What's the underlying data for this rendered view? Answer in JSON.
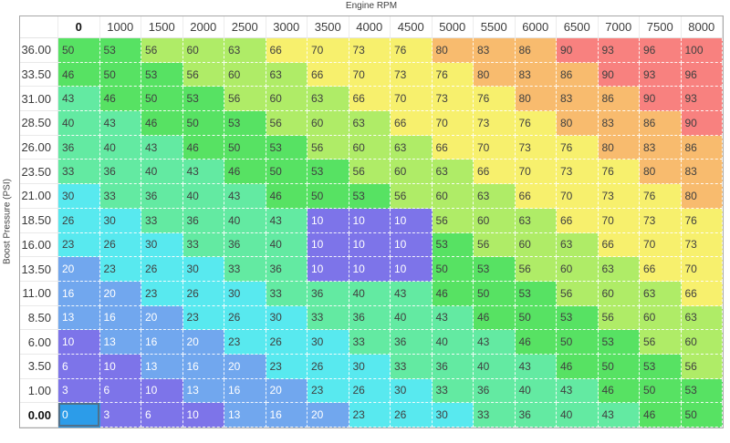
{
  "axes": {
    "x_label": "Engine RPM",
    "y_label": "Boost Pressure (PSI)"
  },
  "table": {
    "column_headers": [
      "0",
      "1000",
      "1500",
      "2000",
      "2500",
      "3000",
      "3500",
      "4000",
      "4500",
      "5000",
      "5500",
      "6000",
      "6500",
      "7000",
      "7500",
      "8000"
    ],
    "row_headers": [
      "36.00",
      "33.50",
      "31.00",
      "28.50",
      "26.00",
      "23.50",
      "21.00",
      "18.50",
      "16.00",
      "13.50",
      "11.00",
      "8.50",
      "6.00",
      "3.50",
      "1.00",
      "0.00"
    ],
    "values": [
      [
        50,
        53,
        56,
        60,
        63,
        66,
        70,
        73,
        76,
        80,
        83,
        86,
        90,
        93,
        96,
        100
      ],
      [
        46,
        50,
        53,
        56,
        60,
        63,
        66,
        70,
        73,
        76,
        80,
        83,
        86,
        90,
        93,
        96
      ],
      [
        43,
        46,
        50,
        53,
        56,
        60,
        63,
        66,
        70,
        73,
        76,
        80,
        83,
        86,
        90,
        93
      ],
      [
        40,
        43,
        46,
        50,
        53,
        56,
        60,
        63,
        66,
        70,
        73,
        76,
        80,
        83,
        86,
        90
      ],
      [
        36,
        40,
        43,
        46,
        50,
        53,
        56,
        60,
        63,
        66,
        70,
        73,
        76,
        80,
        83,
        86
      ],
      [
        33,
        36,
        40,
        43,
        46,
        50,
        53,
        56,
        60,
        63,
        66,
        70,
        73,
        76,
        80,
        83
      ],
      [
        30,
        33,
        36,
        40,
        43,
        46,
        50,
        53,
        56,
        60,
        63,
        66,
        70,
        73,
        76,
        80
      ],
      [
        26,
        30,
        33,
        36,
        40,
        43,
        10,
        10,
        10,
        56,
        60,
        63,
        66,
        70,
        73,
        76
      ],
      [
        23,
        26,
        30,
        33,
        36,
        40,
        10,
        10,
        10,
        53,
        56,
        60,
        63,
        66,
        70,
        73
      ],
      [
        20,
        23,
        26,
        30,
        33,
        36,
        10,
        10,
        10,
        50,
        53,
        56,
        60,
        63,
        66,
        70
      ],
      [
        16,
        20,
        23,
        26,
        30,
        33,
        36,
        40,
        43,
        46,
        50,
        53,
        56,
        60,
        63,
        66
      ],
      [
        13,
        16,
        20,
        23,
        26,
        30,
        33,
        36,
        40,
        43,
        46,
        50,
        53,
        56,
        60,
        63
      ],
      [
        10,
        13,
        16,
        20,
        23,
        26,
        30,
        33,
        36,
        40,
        43,
        46,
        50,
        53,
        56,
        60
      ],
      [
        6,
        10,
        13,
        16,
        20,
        23,
        26,
        30,
        33,
        36,
        40,
        43,
        46,
        50,
        53,
        56
      ],
      [
        3,
        6,
        10,
        13,
        16,
        20,
        23,
        26,
        30,
        33,
        36,
        40,
        43,
        46,
        50,
        53
      ],
      [
        0,
        3,
        6,
        10,
        13,
        16,
        20,
        23,
        26,
        30,
        33,
        36,
        40,
        43,
        46,
        50
      ]
    ],
    "selected_cell": {
      "row_index": 15,
      "col_index": 0,
      "row_header": "0.00",
      "column_header": "0",
      "value": 0
    }
  },
  "colors": {
    "scale": [
      {
        "max": 10,
        "bg": "#7d74e9",
        "fg": "#ffffff"
      },
      {
        "max": 20,
        "bg": "#71a7ee",
        "fg": "#ffffff"
      },
      {
        "max": 30,
        "bg": "#58e9ef",
        "fg": "#404040"
      },
      {
        "max": 43,
        "bg": "#63eaa2",
        "fg": "#404040"
      },
      {
        "max": 53,
        "bg": "#57e263",
        "fg": "#404040"
      },
      {
        "max": 63,
        "bg": "#afec67",
        "fg": "#404040"
      },
      {
        "max": 76,
        "bg": "#f7f06d",
        "fg": "#404040"
      },
      {
        "max": 86,
        "bg": "#f8bb6e",
        "fg": "#404040"
      },
      {
        "max": 100,
        "bg": "#f8817f",
        "fg": "#404040"
      }
    ],
    "selected_bg": "#2c9ce9",
    "selected_border": "#50708a",
    "selected_fg": "#ffffff"
  }
}
